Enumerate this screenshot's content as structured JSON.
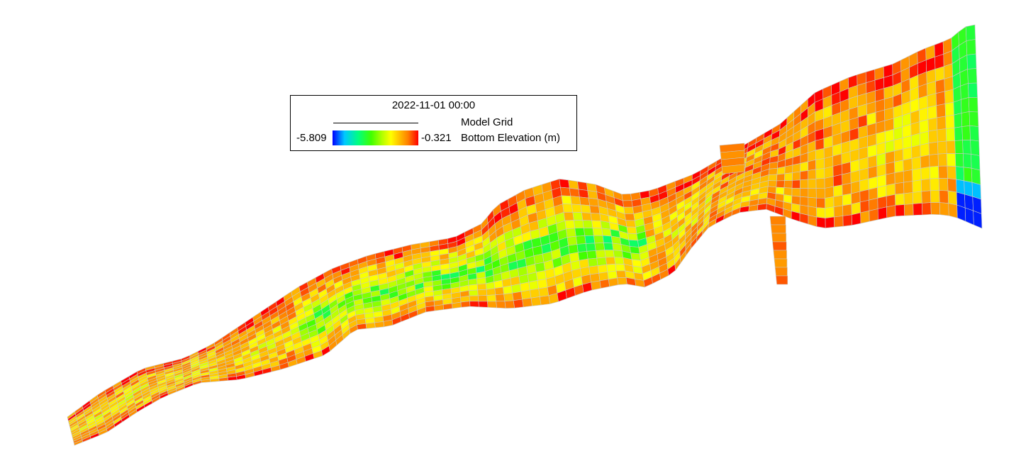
{
  "legend": {
    "timestamp": "2022-11-01 00:00",
    "grid_label": "Model Grid",
    "colorbar_min": "-5.809",
    "colorbar_max": "-0.321",
    "colorbar_label": "Bottom Elevation (m)"
  },
  "map": {
    "variable": "Bottom Elevation (m)",
    "value_range": [
      -5.809,
      -0.321
    ],
    "colormap": [
      "#0000ff",
      "#00c8ff",
      "#00ff80",
      "#40ff00",
      "#b4ff00",
      "#ffff00",
      "#ffc000",
      "#ff8000",
      "#ff0000"
    ],
    "grid_line_color": "#c8c8c8"
  }
}
